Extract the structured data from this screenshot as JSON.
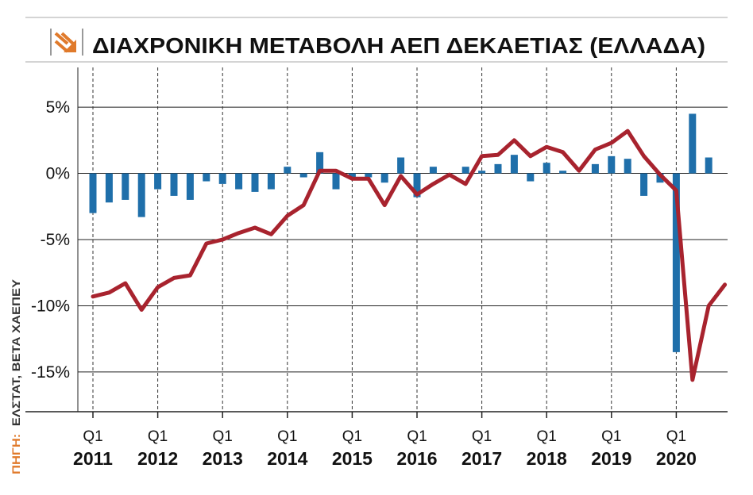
{
  "chart_data": {
    "type": "bar+line",
    "title": "ΔΙΑΧΡΟΝΙΚΗ ΜΕΤΑΒΟΛΗ ΑΕΠ ΔΕΚΑΕΤΙΑΣ (ΕΛΛΑΔΑ)",
    "source_label": "ΠΗΓΗ:",
    "source_text": "ΕΛΣΤΑΤ, ΒΕΤΑ ΧΑΕΠΕΥ",
    "ylim": [
      -18,
      8
    ],
    "y_ticks": [
      {
        "value": 5,
        "label": "5%"
      },
      {
        "value": 0,
        "label": "0%"
      },
      {
        "value": -5,
        "label": "-5%"
      },
      {
        "value": -10,
        "label": "-10%"
      },
      {
        "value": -15,
        "label": "-15%"
      }
    ],
    "x_labels": [
      {
        "index": 0,
        "quarter": "Q1",
        "year": "2011"
      },
      {
        "index": 4,
        "quarter": "Q1",
        "year": "2012"
      },
      {
        "index": 8,
        "quarter": "Q1",
        "year": "2013"
      },
      {
        "index": 12,
        "quarter": "Q1",
        "year": "2014"
      },
      {
        "index": 16,
        "quarter": "Q1",
        "year": "2015"
      },
      {
        "index": 20,
        "quarter": "Q1",
        "year": "2016"
      },
      {
        "index": 24,
        "quarter": "Q1",
        "year": "2017"
      },
      {
        "index": 28,
        "quarter": "Q1",
        "year": "2018"
      },
      {
        "index": 32,
        "quarter": "Q1",
        "year": "2019"
      },
      {
        "index": 36,
        "quarter": "Q1",
        "year": "2020"
      }
    ],
    "series": [
      {
        "kind": "bar",
        "color": "#1f6faa",
        "values": [
          -3.0,
          -2.2,
          -2.0,
          -3.3,
          -1.2,
          -1.7,
          -2.0,
          -0.6,
          -0.8,
          -1.2,
          -1.4,
          -1.2,
          0.5,
          -0.3,
          1.6,
          -1.2,
          -0.3,
          -0.3,
          -0.7,
          1.2,
          -1.8,
          0.5,
          0.0,
          0.5,
          0.2,
          0.7,
          1.4,
          -0.6,
          0.8,
          0.2,
          0.0,
          0.7,
          1.3,
          1.1,
          -1.7,
          -0.7,
          -13.5,
          4.5,
          1.2
        ]
      },
      {
        "kind": "line",
        "color": "#a8232e",
        "values": [
          -9.3,
          -9.0,
          -8.3,
          -10.3,
          -8.6,
          -7.9,
          -7.7,
          -5.3,
          -5.0,
          -4.5,
          -4.1,
          -4.6,
          -3.2,
          -2.4,
          0.2,
          0.2,
          -0.4,
          -0.4,
          -2.4,
          -0.2,
          -1.6,
          -0.8,
          -0.1,
          -0.8,
          1.3,
          1.4,
          2.5,
          1.3,
          2.0,
          1.6,
          0.2,
          1.8,
          2.3,
          3.2,
          1.3,
          -0.1,
          -1.3,
          -15.6,
          -10.0,
          -8.4
        ]
      }
    ]
  }
}
